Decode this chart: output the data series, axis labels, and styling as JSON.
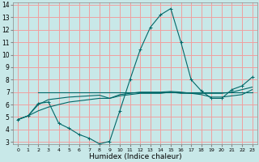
{
  "xlabel": "Humidex (Indice chaleur)",
  "background_color": "#c8e8e8",
  "grid_color": "#f0a0a0",
  "line_color": "#006868",
  "xlim": [
    0,
    23
  ],
  "ylim": [
    3,
    14
  ],
  "xticks": [
    0,
    1,
    2,
    3,
    4,
    5,
    6,
    7,
    8,
    9,
    10,
    11,
    12,
    13,
    14,
    15,
    16,
    17,
    18,
    19,
    20,
    21,
    22,
    23
  ],
  "yticks": [
    3,
    4,
    5,
    6,
    7,
    8,
    9,
    10,
    11,
    12,
    13,
    14
  ],
  "curve1_x": [
    0,
    1,
    2,
    3,
    4,
    5,
    6,
    7,
    8,
    9,
    10,
    11,
    12,
    13,
    14,
    15,
    16,
    17,
    18,
    19,
    20,
    21,
    22,
    23
  ],
  "curve1_y": [
    4.8,
    5.1,
    6.1,
    6.2,
    4.5,
    4.1,
    3.6,
    3.3,
    2.85,
    3.05,
    5.5,
    8.0,
    10.4,
    12.2,
    13.2,
    13.7,
    11.0,
    8.0,
    7.1,
    6.5,
    6.5,
    7.2,
    7.5,
    8.2
  ],
  "curve2_x": [
    2,
    3,
    4,
    5,
    6,
    7,
    8,
    9,
    10,
    11,
    12,
    13,
    14,
    15,
    16,
    17,
    18,
    19,
    20,
    21,
    22,
    23
  ],
  "curve2_y": [
    7.0,
    7.0,
    7.0,
    7.0,
    7.0,
    7.0,
    7.0,
    7.0,
    7.0,
    7.0,
    7.0,
    7.0,
    7.0,
    7.0,
    7.0,
    7.0,
    7.0,
    7.0,
    7.0,
    7.0,
    7.0,
    7.0
  ],
  "curve3_x": [
    0,
    1,
    2,
    3,
    4,
    5,
    6,
    7,
    8,
    9,
    10,
    11,
    12,
    13,
    14,
    15,
    16,
    17,
    18,
    19,
    20,
    21,
    22,
    23
  ],
  "curve3_y": [
    4.8,
    5.1,
    6.0,
    6.4,
    6.5,
    6.6,
    6.65,
    6.7,
    6.75,
    6.5,
    6.8,
    6.9,
    7.0,
    7.0,
    7.0,
    7.05,
    7.0,
    6.9,
    6.8,
    6.6,
    6.6,
    6.7,
    6.8,
    7.2
  ],
  "curve4_x": [
    0,
    1,
    2,
    3,
    4,
    5,
    6,
    7,
    8,
    9,
    10,
    11,
    12,
    13,
    14,
    15,
    16,
    17,
    18,
    19,
    20,
    21,
    22,
    23
  ],
  "curve4_y": [
    4.8,
    5.1,
    5.5,
    5.8,
    6.0,
    6.2,
    6.3,
    6.4,
    6.5,
    6.5,
    6.7,
    6.8,
    6.9,
    6.9,
    6.9,
    7.0,
    6.9,
    6.9,
    6.9,
    6.9,
    6.9,
    7.0,
    7.2,
    7.4
  ]
}
